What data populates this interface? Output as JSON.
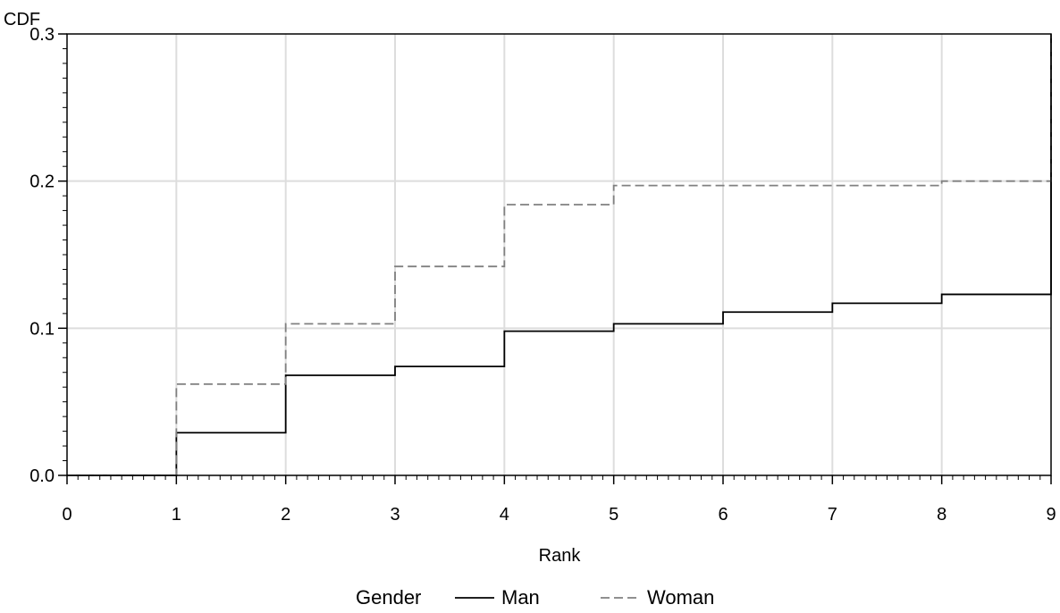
{
  "chart_data": {
    "type": "line",
    "step": "post",
    "xlabel": "Rank",
    "ylabel": "CDF",
    "xlim": [
      0,
      9
    ],
    "ylim": [
      0,
      0.3
    ],
    "x_ticks": [
      "0",
      "1",
      "2",
      "3",
      "4",
      "5",
      "6",
      "7",
      "8",
      "9"
    ],
    "y_ticks": [
      "0.0",
      "0.1",
      "0.2",
      "0.3"
    ],
    "x_minor_step": 0.1,
    "y_minor_step": 0.01,
    "grid": true,
    "legend": {
      "title": "Gender",
      "placement": "bottom"
    },
    "series": [
      {
        "name": "Man",
        "color": "#000000",
        "style": "solid",
        "points": [
          [
            0,
            0
          ],
          [
            1,
            0.029
          ],
          [
            2,
            0.068
          ],
          [
            3,
            0.074
          ],
          [
            4,
            0.098
          ],
          [
            5,
            0.103
          ],
          [
            6,
            0.111
          ],
          [
            7,
            0.117
          ],
          [
            8,
            0.123
          ],
          [
            9,
            0.3
          ]
        ]
      },
      {
        "name": "Woman",
        "color": "#808080",
        "style": "dashed",
        "points": [
          [
            0,
            0
          ],
          [
            1,
            0.062
          ],
          [
            2,
            0.103
          ],
          [
            3,
            0.142
          ],
          [
            4,
            0.184
          ],
          [
            5,
            0.197
          ],
          [
            6,
            0.197
          ],
          [
            7,
            0.197
          ],
          [
            8,
            0.2
          ],
          [
            9,
            0.3
          ]
        ]
      }
    ]
  }
}
